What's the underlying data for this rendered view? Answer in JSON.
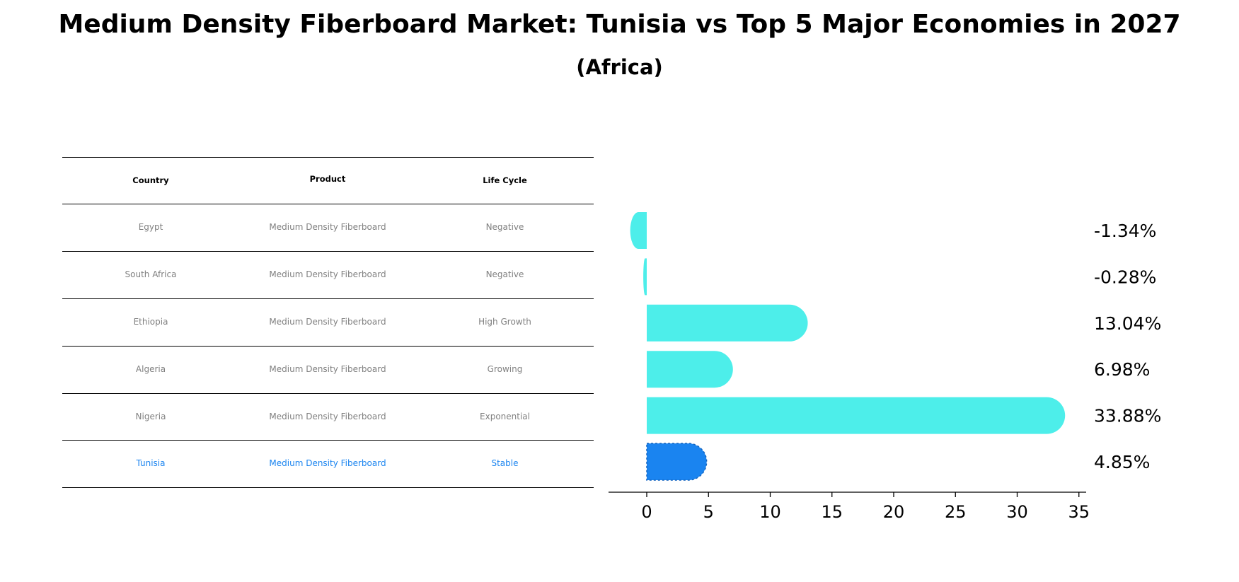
{
  "title": "Medium Density Fiberboard Market: Tunisia vs Top 5 Major Economies in 2027",
  "subtitle": "(Africa)",
  "table": {
    "headers": [
      "Country",
      "Product",
      "Life Cycle"
    ],
    "rows": [
      [
        "Egypt",
        "Medium Density Fiberboard",
        "Negative"
      ],
      [
        "South Africa",
        "Medium Density Fiberboard",
        "Negative"
      ],
      [
        "Ethiopia",
        "Medium Density Fiberboard",
        "High Growth"
      ],
      [
        "Algeria",
        "Medium Density Fiberboard",
        "Growing"
      ],
      [
        "Nigeria",
        "Medium Density Fiberboard",
        "Exponential"
      ],
      [
        "Tunisia",
        "Medium Density Fiberboard",
        "Stable"
      ]
    ],
    "highlight_row": 5
  },
  "colors": {
    "bar": "#4deeea",
    "highlight": "#1a84f0",
    "muted_text": "#808080"
  },
  "chart_data": {
    "type": "bar",
    "orientation": "horizontal",
    "title": "Medium Density Fiberboard Market: Tunisia vs Top 5 Major Economies in 2027",
    "subtitle": "(Africa)",
    "categories": [
      "Egypt",
      "South Africa",
      "Ethiopia",
      "Algeria",
      "Nigeria",
      "Tunisia"
    ],
    "values": [
      -1.34,
      -0.28,
      13.04,
      6.98,
      33.88,
      4.85
    ],
    "value_labels": [
      "-1.34%",
      "-0.28%",
      "13.04%",
      "6.98%",
      "33.88%",
      "4.85%"
    ],
    "highlight": "Tunisia",
    "xlim": [
      -3.1,
      35.7
    ],
    "xticks": [
      0,
      5,
      10,
      15,
      20,
      25,
      30,
      35
    ],
    "xlabel": "",
    "ylabel": "",
    "grid": false
  }
}
